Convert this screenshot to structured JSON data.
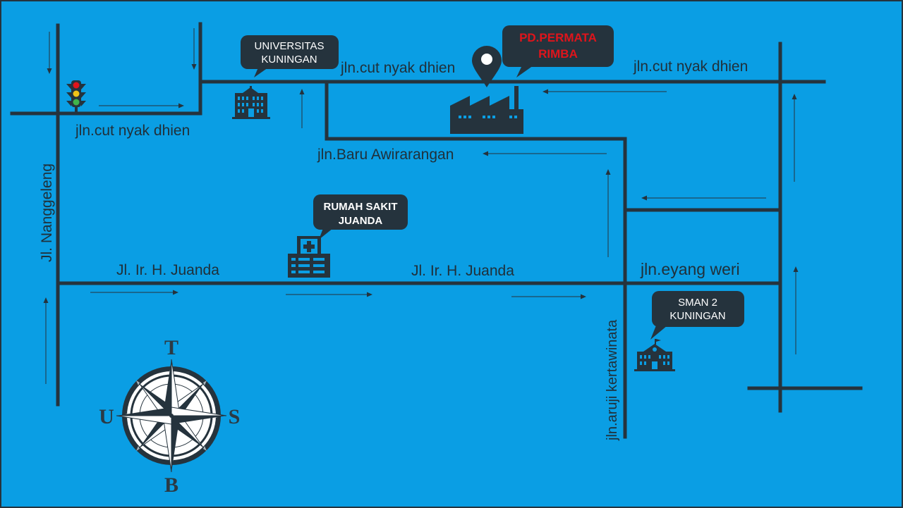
{
  "colors": {
    "background": "#0a9ee4",
    "road": "#25333d",
    "bubble": "#25333d",
    "highlight_text": "#e0141b",
    "label_text": "#20303a"
  },
  "roads": {
    "cut_nyak_dhien_left": "jln.cut nyak dhien",
    "cut_nyak_dhien_mid": "jln.cut nyak dhien",
    "cut_nyak_dhien_right": "jln.cut nyak dhien",
    "baru_awirarangan": "jln.Baru Awirarangan",
    "nanggeleng": "Jl. Nanggeleng",
    "juanda_left": "Jl. Ir. H. Juanda",
    "juanda_right": "Jl. Ir. H. Juanda",
    "eyang_weri": "jln.eyang weri",
    "aruji_kertawinata": "jln.aruji kertawinata"
  },
  "landmarks": {
    "universitas": {
      "line1": "UNIVERSITAS",
      "line2": "KUNINGAN",
      "icon": "university-building-icon"
    },
    "permata": {
      "line1": "PD.PERMATA",
      "line2": "RIMBA",
      "icon": "factory-icon"
    },
    "rumah_sakit": {
      "line1": "RUMAH SAKIT",
      "line2": "JUANDA",
      "icon": "hospital-icon"
    },
    "sman": {
      "line1": "SMAN 2",
      "line2": "KUNINGAN",
      "icon": "school-building-icon"
    }
  },
  "compass": {
    "north": "T",
    "west": "U",
    "east": "S",
    "south": "B"
  },
  "icons": [
    "traffic-light-icon",
    "location-pin-icon",
    "compass-rose-icon"
  ]
}
